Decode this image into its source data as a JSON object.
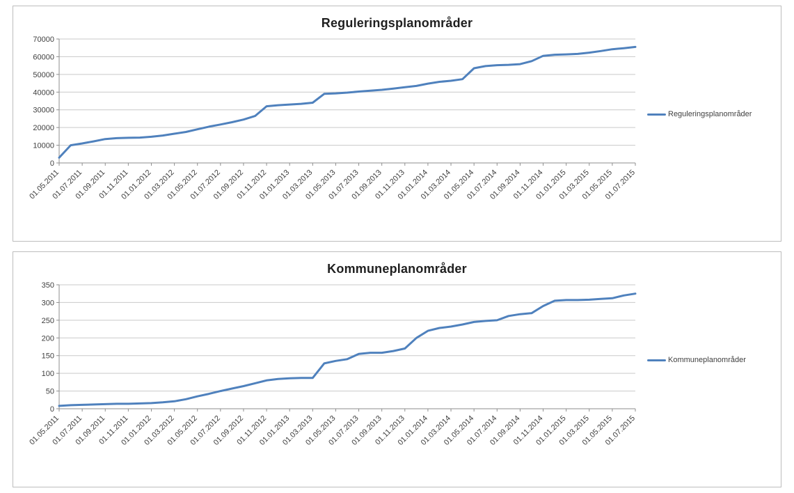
{
  "page": {
    "background_color": "#ffffff",
    "accent_color": "#4f81bd",
    "gridline_color": "#c9c9c9",
    "axis_color": "#8e8e8e",
    "label_color": "#3f3f3f"
  },
  "chart_data": [
    {
      "type": "line",
      "title": "Reguleringsplanområder",
      "legend_label": "Reguleringsplanområder",
      "legend_position": "right",
      "grid": true,
      "line_color": "#4f81bd",
      "ylim": [
        0,
        70000
      ],
      "ytick_step": 10000,
      "ytick_labels": [
        "0",
        "10000",
        "20000",
        "30000",
        "40000",
        "50000",
        "60000",
        "70000"
      ],
      "x_label_every": 2,
      "x": [
        "01.05.2011",
        "01.06.2011",
        "01.07.2011",
        "01.08.2011",
        "01.09.2011",
        "01.10.2011",
        "01.11.2011",
        "01.12.2011",
        "01.01.2012",
        "01.02.2012",
        "01.03.2012",
        "01.04.2012",
        "01.05.2012",
        "01.06.2012",
        "01.07.2012",
        "01.08.2012",
        "01.09.2012",
        "01.10.2012",
        "01.11.2012",
        "01.12.2012",
        "01.01.2013",
        "01.02.2013",
        "01.03.2013",
        "01.04.2013",
        "01.05.2013",
        "01.06.2013",
        "01.07.2013",
        "01.08.2013",
        "01.09.2013",
        "01.10.2013",
        "01.11.2013",
        "01.12.2013",
        "01.01.2014",
        "01.02.2014",
        "01.03.2014",
        "01.04.2014",
        "01.05.2014",
        "01.06.2014",
        "01.07.2014",
        "01.08.2014",
        "01.09.2014",
        "01.10.2014",
        "01.11.2014",
        "01.12.2014",
        "01.01.2015",
        "01.02.2015",
        "01.03.2015",
        "01.04.2015",
        "01.05.2015",
        "01.06.2015",
        "01.07.2015"
      ],
      "values": [
        3000,
        10000,
        11000,
        12200,
        13500,
        14000,
        14200,
        14300,
        14800,
        15500,
        16500,
        17500,
        19000,
        20500,
        21700,
        23000,
        24500,
        26500,
        32000,
        32600,
        33000,
        33400,
        34000,
        39000,
        39300,
        39700,
        40300,
        40800,
        41300,
        42000,
        42800,
        43500,
        44800,
        45800,
        46400,
        47300,
        53500,
        54700,
        55200,
        55400,
        55800,
        57500,
        60500,
        61100,
        61300,
        61600,
        62300,
        63200,
        64200,
        64800,
        65500
      ]
    },
    {
      "type": "line",
      "title": "Kommuneplanområder",
      "legend_label": "Kommuneplanområder",
      "legend_position": "right",
      "grid": true,
      "line_color": "#4f81bd",
      "ylim": [
        0,
        350
      ],
      "ytick_step": 50,
      "ytick_labels": [
        "0",
        "50",
        "100",
        "150",
        "200",
        "250",
        "300",
        "350"
      ],
      "x_label_every": 2,
      "x": [
        "01.05.2011",
        "01.06.2011",
        "01.07.2011",
        "01.08.2011",
        "01.09.2011",
        "01.10.2011",
        "01.11.2011",
        "01.12.2011",
        "01.01.2012",
        "01.02.2012",
        "01.03.2012",
        "01.04.2012",
        "01.05.2012",
        "01.06.2012",
        "01.07.2012",
        "01.08.2012",
        "01.09.2012",
        "01.10.2012",
        "01.11.2012",
        "01.12.2012",
        "01.01.2013",
        "01.02.2013",
        "01.03.2013",
        "01.04.2013",
        "01.05.2013",
        "01.06.2013",
        "01.07.2013",
        "01.08.2013",
        "01.09.2013",
        "01.10.2013",
        "01.11.2013",
        "01.12.2013",
        "01.01.2014",
        "01.02.2014",
        "01.03.2014",
        "01.04.2014",
        "01.05.2014",
        "01.06.2014",
        "01.07.2014",
        "01.08.2014",
        "01.09.2014",
        "01.10.2014",
        "01.11.2014",
        "01.12.2014",
        "01.01.2015",
        "01.02.2015",
        "01.03.2015",
        "01.04.2015",
        "01.05.2015",
        "01.06.2015",
        "01.07.2015"
      ],
      "values": [
        8,
        10,
        11,
        12,
        13,
        14,
        14,
        15,
        16,
        18,
        21,
        27,
        35,
        42,
        50,
        57,
        64,
        72,
        80,
        84,
        86,
        87,
        87,
        128,
        135,
        140,
        155,
        158,
        158,
        163,
        170,
        200,
        220,
        228,
        232,
        238,
        245,
        248,
        250,
        262,
        267,
        270,
        290,
        305,
        307,
        307,
        308,
        310,
        312,
        320,
        325
      ]
    }
  ]
}
